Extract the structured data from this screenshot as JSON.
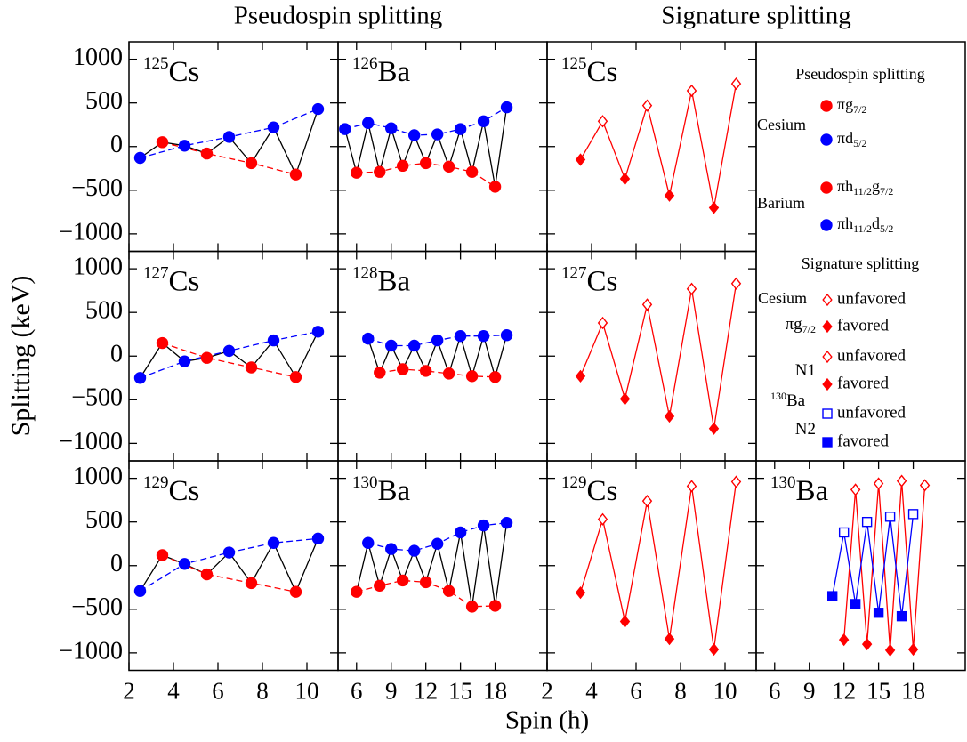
{
  "figure": {
    "column_titles": [
      "Pseudospin splitting",
      "Signature splitting"
    ],
    "ylabel": "Splitting (keV)",
    "xlabel": "Spin (ħ)"
  },
  "legend": {
    "pseudospin": {
      "title": "Pseudospin splitting",
      "groups": [
        {
          "name": "Cesium",
          "entries": [
            {
              "label": [
                "πg",
                "7/2"
              ],
              "color": "#ff0000",
              "marker": "circle",
              "filled": true
            },
            {
              "label": [
                "πd",
                "5/2"
              ],
              "color": "#0000ff",
              "marker": "circle",
              "filled": true
            }
          ]
        },
        {
          "name": "Barium",
          "entries": [
            {
              "label": [
                "πh",
                "11/2",
                "g",
                "7/2"
              ],
              "color": "#ff0000",
              "marker": "circle",
              "filled": true
            },
            {
              "label": [
                "πh",
                "11/2",
                "d",
                "5/2"
              ],
              "color": "#0000ff",
              "marker": "circle",
              "filled": true
            }
          ]
        }
      ]
    },
    "signature": {
      "title": "Signature splitting",
      "element": "Cesium",
      "nucleus": {
        "mass": "130",
        "element": "Ba"
      },
      "groups": [
        {
          "name": [
            "πg",
            "7/2"
          ],
          "color": "#ff0000",
          "entries": [
            {
              "label": "unfavored",
              "marker": "diamond",
              "filled": false
            },
            {
              "label": "favored",
              "marker": "diamond",
              "filled": true
            }
          ]
        },
        {
          "name": [
            "N1"
          ],
          "color": "#ff0000",
          "entries": [
            {
              "label": "unfavored",
              "marker": "diamond",
              "filled": false
            },
            {
              "label": "favored",
              "marker": "diamond",
              "filled": true
            }
          ]
        },
        {
          "name": [
            "N2"
          ],
          "color": "#0000ff",
          "entries": [
            {
              "label": "unfavored",
              "marker": "square",
              "filled": false
            },
            {
              "label": "favored",
              "marker": "square",
              "filled": true
            }
          ]
        }
      ]
    }
  },
  "chart_data": [
    {
      "type": "line",
      "label_mass": "125",
      "label_element": "Cs",
      "xlim": [
        2,
        11.4
      ],
      "xticks": [
        2,
        4,
        6,
        8,
        10
      ],
      "ylim": [
        -1200,
        1200
      ],
      "yticks": [
        {
          "value": -1000,
          "label": "−1000"
        },
        {
          "value": -500,
          "label": "−500"
        },
        0,
        500,
        1000
      ],
      "yticklabels": true,
      "series": [
        {
          "x": [
            3.5,
            5.5,
            7.5,
            9.5
          ],
          "values": [
            50,
            -80,
            -190,
            -320
          ],
          "color": "#ff0000",
          "marker": "circle",
          "filled": true,
          "line": "dashed",
          "zigzag": "#000000"
        },
        {
          "x": [
            2.5,
            4.5,
            6.5,
            8.5,
            10.5
          ],
          "values": [
            -130,
            10,
            110,
            220,
            430
          ],
          "color": "#0000ff",
          "marker": "circle",
          "filled": true,
          "line": "dashed",
          "zigzag": "#000000"
        }
      ]
    },
    {
      "type": "line",
      "label_mass": "126",
      "label_element": "Ba",
      "xlim": [
        4.4,
        22.5
      ],
      "xticks": [
        6,
        9,
        12,
        15,
        18
      ],
      "ylim": [
        -1200,
        1200
      ],
      "yticks": [
        -1000,
        -500,
        0,
        500,
        1000
      ],
      "series": [
        {
          "x": [
            6,
            8,
            10,
            12,
            14,
            16,
            18
          ],
          "values": [
            -300,
            -290,
            -220,
            -190,
            -230,
            -290,
            -460
          ],
          "color": "#ff0000",
          "marker": "circle",
          "filled": true,
          "line": "dashed",
          "zigzag": "#000000"
        },
        {
          "x": [
            5,
            7,
            9,
            11,
            13,
            15,
            17,
            19
          ],
          "values": [
            200,
            270,
            210,
            130,
            140,
            200,
            290,
            450
          ],
          "color": "#0000ff",
          "marker": "circle",
          "filled": true,
          "line": "dashed",
          "zigzag": "#000000"
        }
      ]
    },
    {
      "type": "line",
      "label_mass": "125",
      "label_element": "Cs",
      "xlim": [
        2,
        11.4
      ],
      "xticks": [
        2,
        4,
        6,
        8,
        10
      ],
      "ylim": [
        -1200,
        1200
      ],
      "yticks": [
        -1000,
        -500,
        0,
        500,
        1000
      ],
      "series": [
        {
          "x": [
            4.5,
            6.5,
            8.5,
            10.5
          ],
          "values": [
            290,
            470,
            640,
            720
          ],
          "color": "#ff0000",
          "marker": "diamond",
          "filled": false,
          "line": "none",
          "zigzag": "#ff0000"
        },
        {
          "x": [
            3.5,
            5.5,
            7.5,
            9.5
          ],
          "values": [
            -150,
            -370,
            -560,
            -700
          ],
          "color": "#ff0000",
          "marker": "diamond",
          "filled": true,
          "line": "none",
          "zigzag": "#ff0000"
        }
      ]
    },
    {
      "type": "line",
      "label_mass": "127",
      "label_element": "Cs",
      "xlim": [
        2,
        11.4
      ],
      "xticks": [
        2,
        4,
        6,
        8,
        10
      ],
      "ylim": [
        -1200,
        1200
      ],
      "yticks": [
        {
          "value": -1000,
          "label": "−1000"
        },
        {
          "value": -500,
          "label": "−500"
        },
        0,
        500,
        1000
      ],
      "yticklabels": true,
      "series": [
        {
          "x": [
            3.5,
            5.5,
            7.5,
            9.5
          ],
          "values": [
            150,
            -20,
            -130,
            -240
          ],
          "color": "#ff0000",
          "marker": "circle",
          "filled": true,
          "line": "dashed",
          "zigzag": "#000000"
        },
        {
          "x": [
            2.5,
            4.5,
            6.5,
            8.5,
            10.5
          ],
          "values": [
            -250,
            -60,
            60,
            180,
            280
          ],
          "color": "#0000ff",
          "marker": "circle",
          "filled": true,
          "line": "dashed",
          "zigzag": "#000000"
        }
      ]
    },
    {
      "type": "line",
      "label_mass": "128",
      "label_element": "Ba",
      "xlim": [
        4.4,
        22.5
      ],
      "xticks": [
        6,
        9,
        12,
        15,
        18
      ],
      "ylim": [
        -1200,
        1200
      ],
      "yticks": [
        -1000,
        -500,
        0,
        500,
        1000
      ],
      "series": [
        {
          "x": [
            8,
            10,
            12,
            14,
            16,
            18
          ],
          "values": [
            -190,
            -150,
            -170,
            -200,
            -230,
            -240
          ],
          "color": "#ff0000",
          "marker": "circle",
          "filled": true,
          "line": "dashed",
          "zigzag": "#000000"
        },
        {
          "x": [
            7,
            9,
            11,
            13,
            15,
            17,
            19
          ],
          "values": [
            200,
            120,
            120,
            180,
            230,
            230,
            240
          ],
          "color": "#0000ff",
          "marker": "circle",
          "filled": true,
          "line": "dashed",
          "zigzag": "#000000"
        }
      ]
    },
    {
      "type": "line",
      "label_mass": "127",
      "label_element": "Cs",
      "xlim": [
        2,
        11.4
      ],
      "xticks": [
        2,
        4,
        6,
        8,
        10
      ],
      "ylim": [
        -1200,
        1200
      ],
      "yticks": [
        -1000,
        -500,
        0,
        500,
        1000
      ],
      "series": [
        {
          "x": [
            4.5,
            6.5,
            8.5,
            10.5
          ],
          "values": [
            380,
            590,
            770,
            830
          ],
          "color": "#ff0000",
          "marker": "diamond",
          "filled": false,
          "line": "none",
          "zigzag": "#ff0000"
        },
        {
          "x": [
            3.5,
            5.5,
            7.5,
            9.5
          ],
          "values": [
            -230,
            -490,
            -690,
            -830
          ],
          "color": "#ff0000",
          "marker": "diamond",
          "filled": true,
          "line": "none",
          "zigzag": "#ff0000"
        }
      ]
    },
    {
      "type": "line",
      "label_mass": "129",
      "label_element": "Cs",
      "xlim": [
        2,
        11.4
      ],
      "xticks": [
        2,
        4,
        6,
        8,
        10
      ],
      "ylim": [
        -1200,
        1200
      ],
      "yticks": [
        {
          "value": -1000,
          "label": "−1000"
        },
        {
          "value": -500,
          "label": "−500"
        },
        0,
        500,
        1000
      ],
      "yticklabels": true,
      "xticklabels": true,
      "series": [
        {
          "x": [
            3.5,
            5.5,
            7.5,
            9.5
          ],
          "values": [
            120,
            -100,
            -200,
            -300
          ],
          "color": "#ff0000",
          "marker": "circle",
          "filled": true,
          "line": "dashed",
          "zigzag": "#000000"
        },
        {
          "x": [
            2.5,
            4.5,
            6.5,
            8.5,
            10.5
          ],
          "values": [
            -290,
            20,
            150,
            260,
            310
          ],
          "color": "#0000ff",
          "marker": "circle",
          "filled": true,
          "line": "dashed",
          "zigzag": "#000000"
        }
      ]
    },
    {
      "type": "line",
      "label_mass": "130",
      "label_element": "Ba",
      "xlim": [
        4.4,
        22.5
      ],
      "xticks": [
        6,
        9,
        12,
        15,
        18
      ],
      "ylim": [
        -1200,
        1200
      ],
      "yticks": [
        -1000,
        -500,
        0,
        500,
        1000
      ],
      "xticklabels": true,
      "series": [
        {
          "x": [
            6,
            8,
            10,
            12,
            14,
            16,
            18
          ],
          "values": [
            -300,
            -230,
            -170,
            -190,
            -290,
            -470,
            -460
          ],
          "color": "#ff0000",
          "marker": "circle",
          "filled": true,
          "line": "dashed",
          "zigzag": "#000000"
        },
        {
          "x": [
            7,
            9,
            11,
            13,
            15,
            17,
            19
          ],
          "values": [
            260,
            190,
            170,
            250,
            380,
            460,
            490
          ],
          "color": "#0000ff",
          "marker": "circle",
          "filled": true,
          "line": "dashed",
          "zigzag": "#000000"
        }
      ]
    },
    {
      "type": "line",
      "label_mass": "129",
      "label_element": "Cs",
      "xlim": [
        2,
        11.4
      ],
      "xticks": [
        2,
        4,
        6,
        8,
        10
      ],
      "ylim": [
        -1200,
        1200
      ],
      "yticks": [
        -1000,
        -500,
        0,
        500,
        1000
      ],
      "xticklabels": true,
      "series": [
        {
          "x": [
            4.5,
            6.5,
            8.5,
            10.5
          ],
          "values": [
            530,
            740,
            910,
            960
          ],
          "color": "#ff0000",
          "marker": "diamond",
          "filled": false,
          "line": "none",
          "zigzag": "#ff0000"
        },
        {
          "x": [
            3.5,
            5.5,
            7.5,
            9.5
          ],
          "values": [
            -310,
            -640,
            -840,
            -960
          ],
          "color": "#ff0000",
          "marker": "diamond",
          "filled": true,
          "line": "none",
          "zigzag": "#ff0000"
        }
      ]
    },
    {
      "type": "line",
      "label_mass": "130",
      "label_element": "Ba",
      "xlim": [
        4.4,
        22.5
      ],
      "xticks": [
        6,
        9,
        12,
        15,
        18
      ],
      "ylim": [
        -1200,
        1200
      ],
      "yticks": [
        -1000,
        -500,
        0,
        500,
        1000
      ],
      "xticklabels": true,
      "series": [
        {
          "x": [
            13,
            15,
            17,
            19
          ],
          "values": [
            870,
            940,
            970,
            920
          ],
          "color": "#ff0000",
          "marker": "diamond",
          "filled": false,
          "line": "none",
          "zigzag": "#ff0000"
        },
        {
          "x": [
            12,
            14,
            16,
            18
          ],
          "values": [
            -850,
            -900,
            -970,
            -960
          ],
          "color": "#ff0000",
          "marker": "diamond",
          "filled": true,
          "line": "none",
          "zigzag": "#ff0000"
        },
        {
          "x": [
            12,
            14,
            16,
            18
          ],
          "values": [
            380,
            500,
            560,
            590
          ],
          "color": "#0000ff",
          "marker": "square",
          "filled": false,
          "line": "none",
          "zigzag": "#0000ff"
        },
        {
          "x": [
            11,
            13,
            15,
            17
          ],
          "values": [
            -350,
            -440,
            -540,
            -580
          ],
          "color": "#0000ff",
          "marker": "square",
          "filled": true,
          "line": "none",
          "zigzag": "#0000ff"
        }
      ]
    }
  ]
}
